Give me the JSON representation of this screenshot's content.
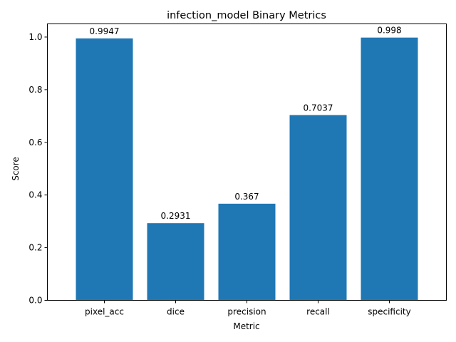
{
  "chart_data": {
    "type": "bar",
    "title": "infection_model Binary Metrics",
    "xlabel": "Metric",
    "ylabel": "Score",
    "categories": [
      "pixel_acc",
      "dice",
      "precision",
      "recall",
      "specificity"
    ],
    "values": [
      0.9947,
      0.2931,
      0.367,
      0.7037,
      0.998
    ],
    "data_labels": [
      "0.9947",
      "0.2931",
      "0.367",
      "0.7037",
      "0.998"
    ],
    "ylim": [
      0,
      1.05
    ],
    "yticks": [
      0.0,
      0.2,
      0.4,
      0.6,
      0.8,
      1.0
    ],
    "ytick_labels": [
      "0.0",
      "0.2",
      "0.4",
      "0.6",
      "0.8",
      "1.0"
    ],
    "bar_color": "#1f77b4",
    "grid": false,
    "legend": "none"
  }
}
